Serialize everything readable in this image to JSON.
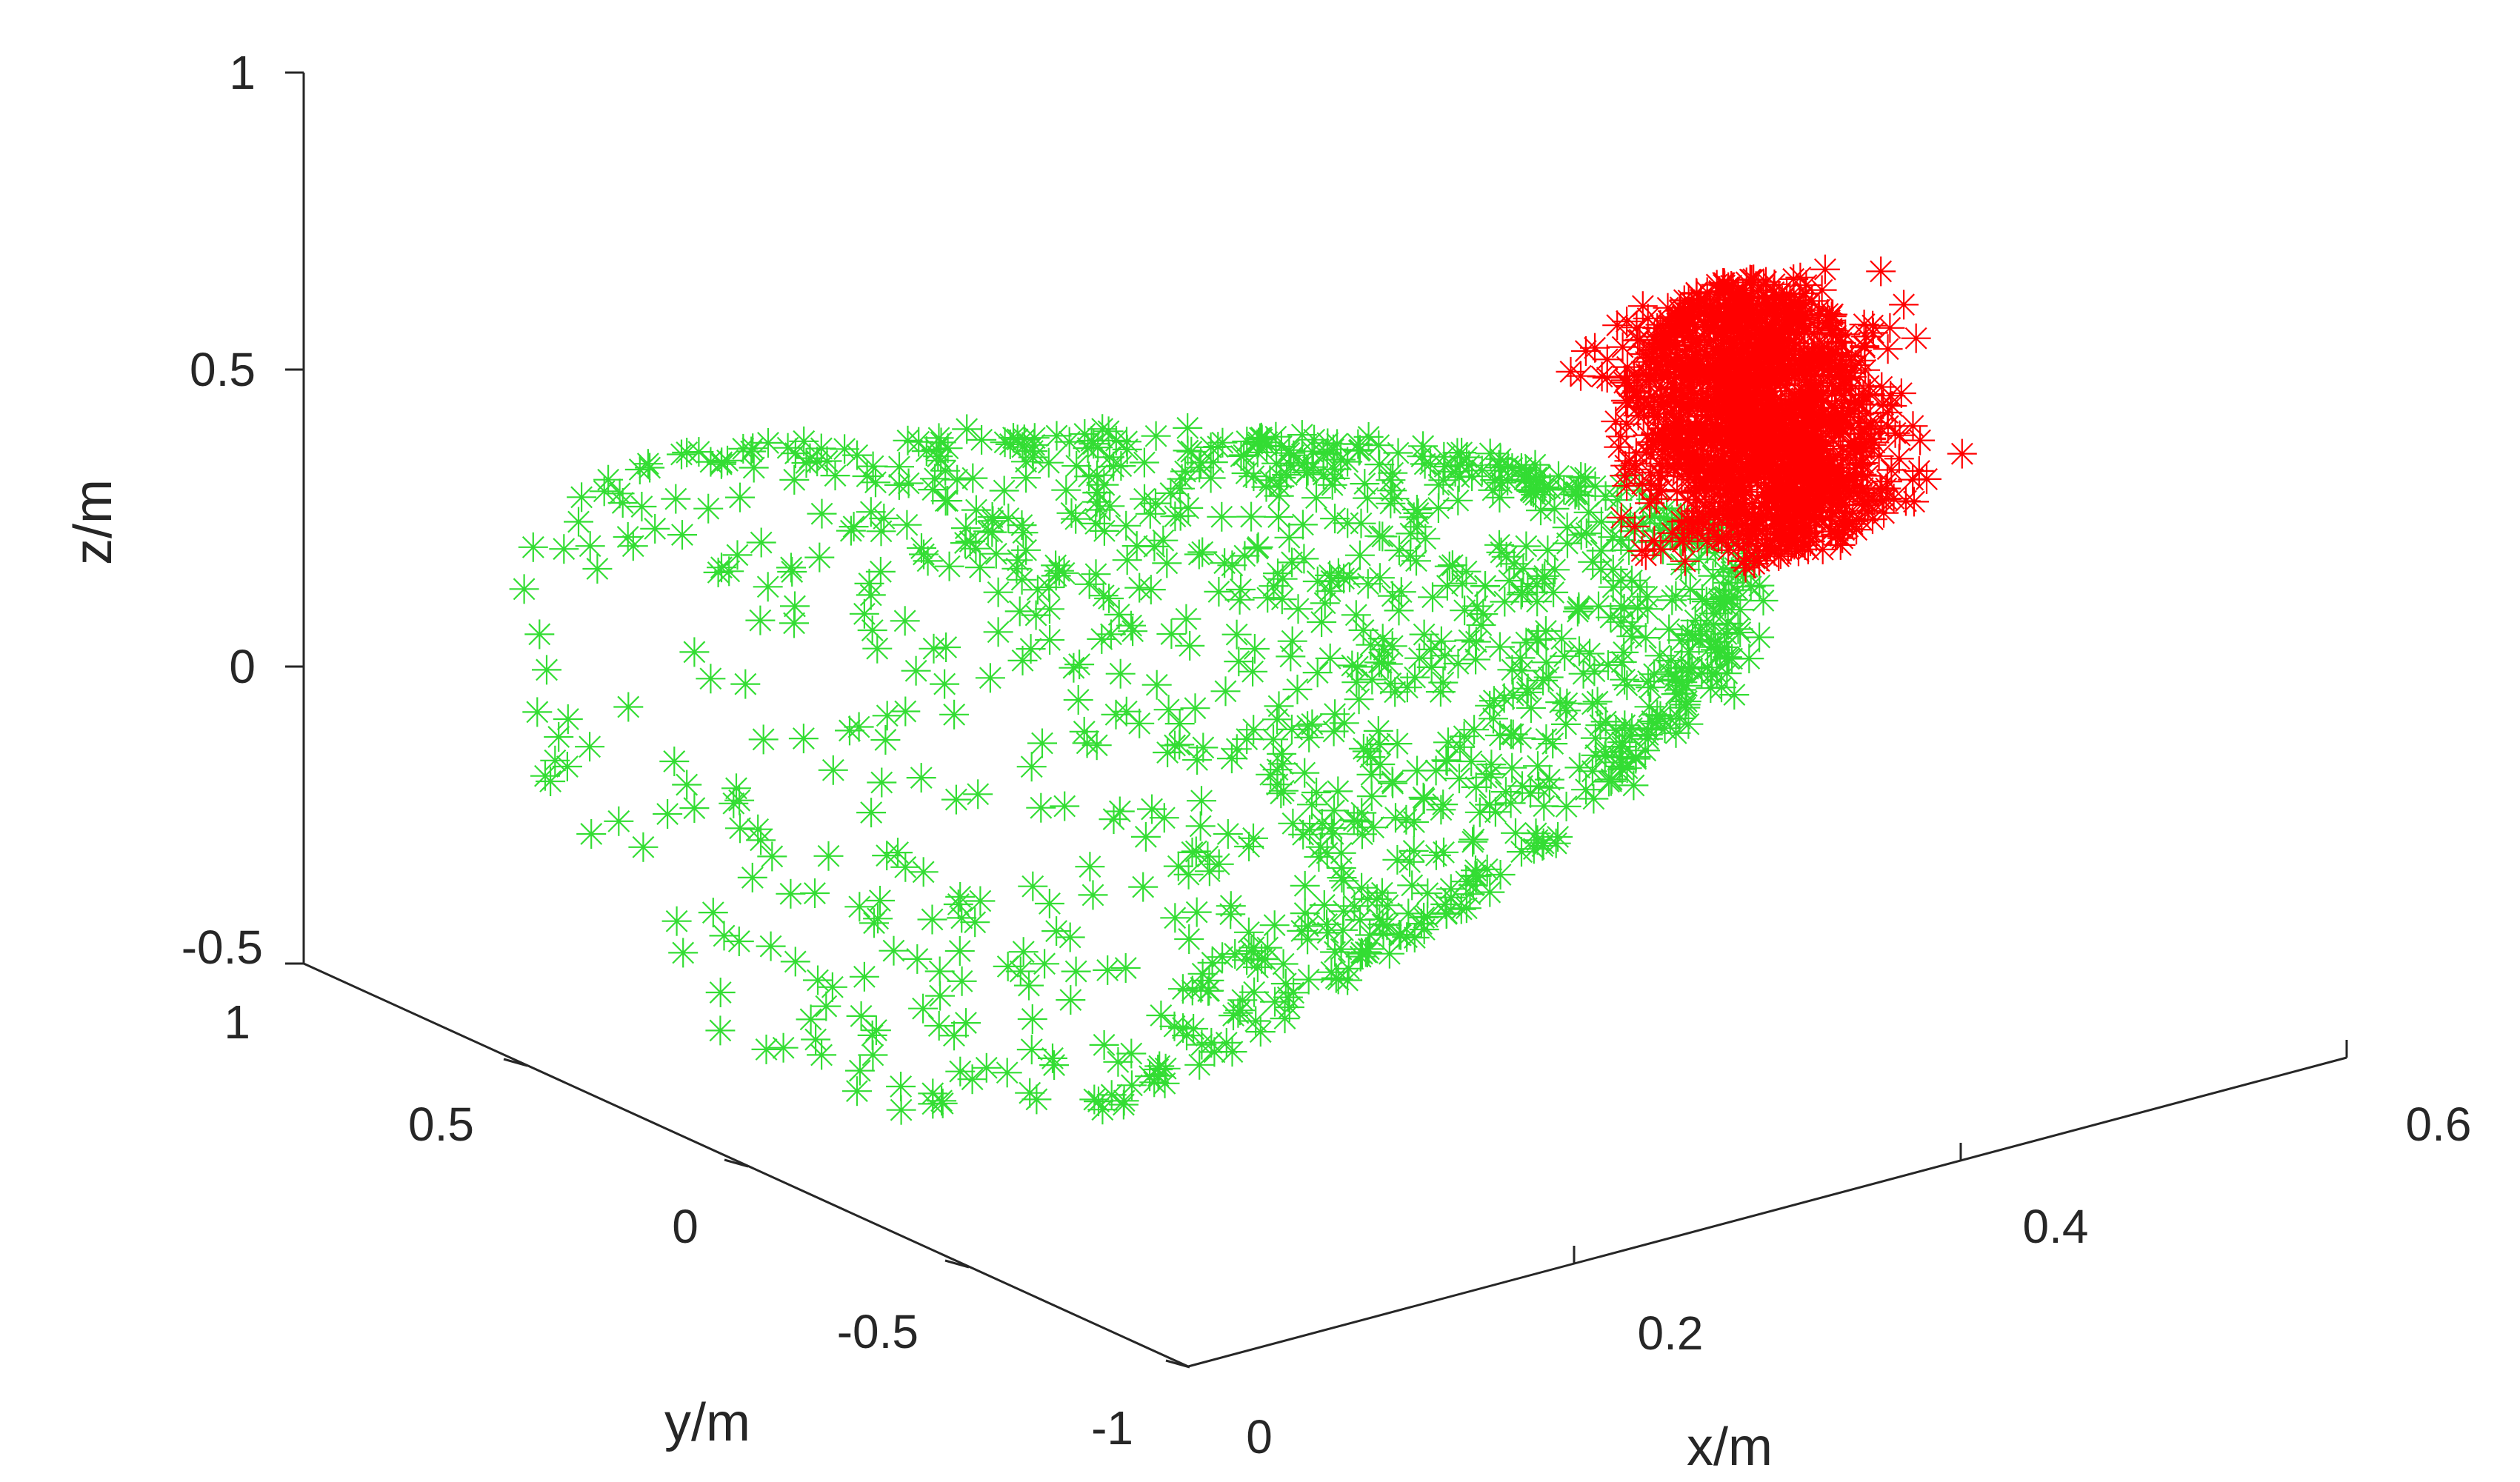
{
  "chart_data": {
    "type": "scatter",
    "projection": "3d",
    "title": "",
    "xlabel": "x/m",
    "ylabel": "y/m",
    "zlabel": "z/m",
    "xlim": [
      0,
      0.6
    ],
    "ylim": [
      -1,
      1
    ],
    "zlim": [
      -0.5,
      1
    ],
    "xticks": [
      "0",
      "0.2",
      "0.4",
      "0.6"
    ],
    "yticks": [
      "-1",
      "-0.5",
      "0",
      "0.5",
      "1"
    ],
    "zticks": [
      "-0.5",
      "0",
      "0.5",
      "1"
    ],
    "grid": false,
    "marker": "asterisk",
    "series": [
      {
        "color": "#33dd33",
        "shape": "paraboloid shell",
        "x_range": [
          0.05,
          0.5
        ],
        "y_range": [
          -0.75,
          0.75
        ],
        "z_range": [
          -0.45,
          0.6
        ],
        "approx_points": 1100
      },
      {
        "color": "#ff0000",
        "shape": "dense cluster",
        "x_range": [
          0.45,
          0.6
        ],
        "y_range": [
          -0.25,
          0.25
        ],
        "z_range": [
          0.05,
          0.55
        ],
        "approx_points": 1400
      }
    ]
  }
}
